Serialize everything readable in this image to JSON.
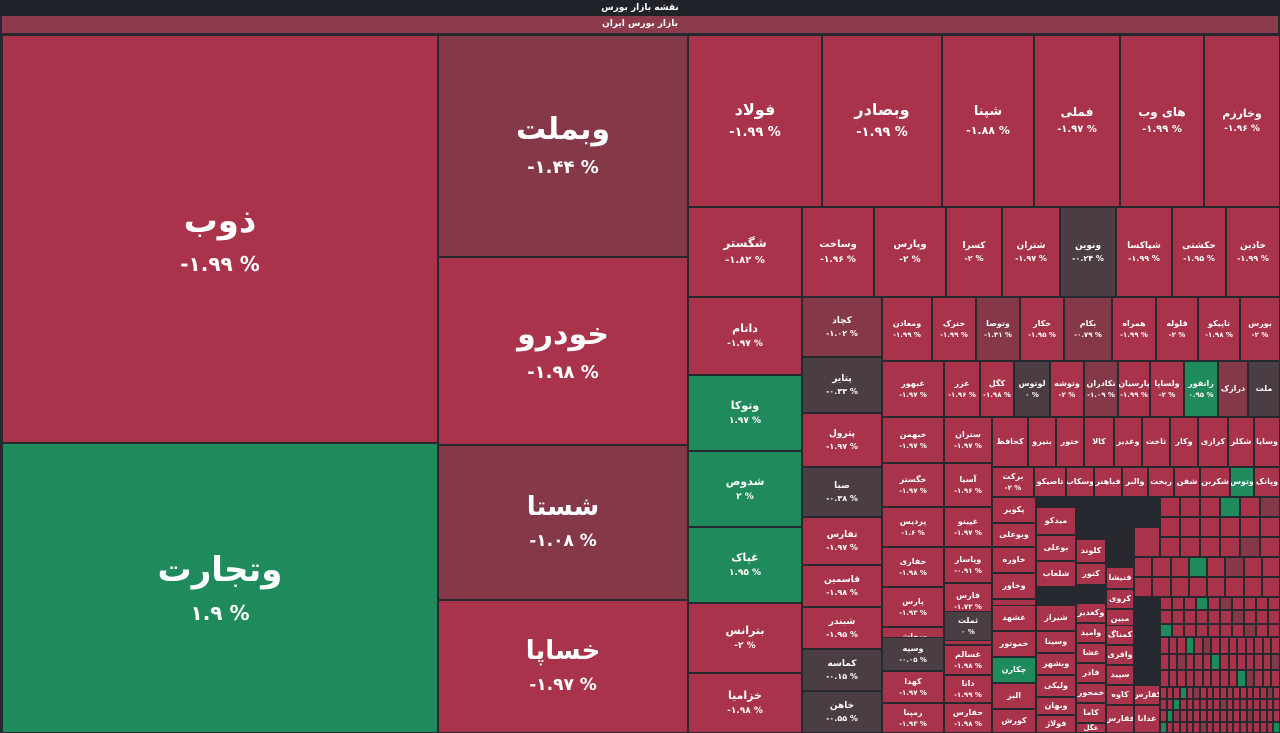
{
  "header": {
    "title": "نقشه بازار بورس",
    "subtitle": "بازار بورس ایران"
  },
  "tiles": [
    {
      "name": "ذوب",
      "change": "-۱.۹۹ %",
      "color": "red"
    },
    {
      "name": "وتجارت",
      "change": "۱.۹ %",
      "color": "green"
    },
    {
      "name": "وبملت",
      "change": "-۱.۴۴ %",
      "color": "mauve"
    },
    {
      "name": "خودرو",
      "change": "-۱.۹۸ %",
      "color": "red"
    },
    {
      "name": "شستا",
      "change": "-۱.۰۸ %",
      "color": "mauve"
    },
    {
      "name": "خساپا",
      "change": "-۱.۹۷ %",
      "color": "red"
    },
    {
      "name": "فولاد",
      "change": "-۱.۹۹ %",
      "color": "red"
    },
    {
      "name": "وبصادر",
      "change": "-۱.۹۹ %",
      "color": "red"
    },
    {
      "name": "شپنا",
      "change": "-۱.۸۸ %",
      "color": "red"
    },
    {
      "name": "فملی",
      "change": "-۱.۹۷ %",
      "color": "red"
    },
    {
      "name": "های وب",
      "change": "-۱.۹۹ %",
      "color": "red"
    },
    {
      "name": "وخارزم",
      "change": "-۱.۹۶ %",
      "color": "red"
    },
    {
      "name": "شگستر",
      "change": "-۱.۸۲ %",
      "color": "red"
    },
    {
      "name": "وساخت",
      "change": "-۱.۹۶ %",
      "color": "red"
    },
    {
      "name": "وپارس",
      "change": "-۲ %",
      "color": "red"
    },
    {
      "name": "کسرا",
      "change": "-۲ %",
      "color": "red"
    },
    {
      "name": "شتران",
      "change": "-۱.۹۷ %",
      "color": "red"
    },
    {
      "name": "ونوین",
      "change": "-۰.۲۴ %",
      "color": "dark"
    },
    {
      "name": "شپاکسا",
      "change": "-۱.۹۹ %",
      "color": "red"
    },
    {
      "name": "حکشتی",
      "change": "-۱.۹۵ %",
      "color": "red"
    },
    {
      "name": "خاذین",
      "change": "-۱.۹۹ %",
      "color": "red"
    },
    {
      "name": "داتام",
      "change": "-۱.۹۷ %",
      "color": "red"
    },
    {
      "name": "کچاد",
      "change": "-۱.۰۲ %",
      "color": "mauve"
    },
    {
      "name": "ومعادن",
      "change": "-۱.۹۹ %",
      "color": "red"
    },
    {
      "name": "خترک",
      "change": "-۱.۹۹ %",
      "color": "red"
    },
    {
      "name": "وتوصا",
      "change": "-۱.۴۱ %",
      "color": "mauve"
    },
    {
      "name": "خکار",
      "change": "-۱.۹۵ %",
      "color": "red"
    },
    {
      "name": "بکام",
      "change": "-۰.۷۹ %",
      "color": "mauve"
    },
    {
      "name": "همراه",
      "change": "-۱.۹۹ %",
      "color": "red"
    },
    {
      "name": "قلوله",
      "change": "-۲ %",
      "color": "red"
    },
    {
      "name": "تاپیکو",
      "change": "-۱.۹۸ %",
      "color": "red"
    },
    {
      "name": "بورس",
      "change": "-۲ %",
      "color": "red"
    },
    {
      "name": "وتوکا",
      "change": "۱.۹۷ %",
      "color": "green"
    },
    {
      "name": "پتایر",
      "change": "-۰.۳۳ %",
      "color": "dark"
    },
    {
      "name": "غبهور",
      "change": "-۱.۹۷ %",
      "color": "red"
    },
    {
      "name": "غزر",
      "change": "-۱.۹۶ %",
      "color": "red"
    },
    {
      "name": "کگل",
      "change": "-۱.۹۸ %",
      "color": "red"
    },
    {
      "name": "لوتوس",
      "change": "۰ %",
      "color": "dark"
    },
    {
      "name": "وتوشه",
      "change": "-۲ %",
      "color": "red"
    },
    {
      "name": "تکادران",
      "change": "-۱.۰۹ %",
      "color": "mauve"
    },
    {
      "name": "پارسیان",
      "change": "-۱.۹۹ %",
      "color": "red"
    },
    {
      "name": "ولساپا",
      "change": "-۲ %",
      "color": "red"
    },
    {
      "name": "رانفور",
      "change": "۰.۹۵ %",
      "color": "green"
    },
    {
      "name": "درازک",
      "change": "",
      "color": "mauve"
    },
    {
      "name": "ملت",
      "change": "",
      "color": "dark"
    },
    {
      "name": "شدوص",
      "change": "۲ %",
      "color": "green"
    },
    {
      "name": "پترول",
      "change": "-۱.۹۷ %",
      "color": "red"
    },
    {
      "name": "خبهمن",
      "change": "-۱.۹۷ %",
      "color": "red"
    },
    {
      "name": "ستران",
      "change": "-۱.۹۷ %",
      "color": "red"
    },
    {
      "name": "کحافظ",
      "change": "",
      "color": "red"
    },
    {
      "name": "بنیرو",
      "change": "",
      "color": "red"
    },
    {
      "name": "ختور",
      "change": "",
      "color": "red"
    },
    {
      "name": "کالا",
      "change": "",
      "color": "red"
    },
    {
      "name": "وغدیر",
      "change": "",
      "color": "red"
    },
    {
      "name": "ثاخت",
      "change": "",
      "color": "red"
    },
    {
      "name": "وکار",
      "change": "",
      "color": "red"
    },
    {
      "name": "کرازی",
      "change": "",
      "color": "red"
    },
    {
      "name": "شکلر",
      "change": "",
      "color": "red"
    },
    {
      "name": "وسایا",
      "change": "",
      "color": "red"
    },
    {
      "name": "غپاک",
      "change": "۱.۹۵ %",
      "color": "green"
    },
    {
      "name": "صبا",
      "change": "-۰.۳۸ %",
      "color": "dark"
    },
    {
      "name": "خگستر",
      "change": "-۱.۹۷ %",
      "color": "red"
    },
    {
      "name": "آسیا",
      "change": "-۱.۹۶ %",
      "color": "red"
    },
    {
      "name": "برکت",
      "change": "-۲ %",
      "color": "red"
    },
    {
      "name": "تاصیکو",
      "change": "",
      "color": "red"
    },
    {
      "name": "وسکاب",
      "change": "",
      "color": "red"
    },
    {
      "name": "فباهنر",
      "change": "",
      "color": "red"
    },
    {
      "name": "والبر",
      "change": "",
      "color": "red"
    },
    {
      "name": "ریخت",
      "change": "",
      "color": "red"
    },
    {
      "name": "شفن",
      "change": "",
      "color": "red"
    },
    {
      "name": "شکربن",
      "change": "",
      "color": "red"
    },
    {
      "name": "وتوس",
      "change": "",
      "color": "green"
    },
    {
      "name": "وپانک",
      "change": "",
      "color": "red"
    },
    {
      "name": "پردیس",
      "change": "-۱.۶ %",
      "color": "red"
    },
    {
      "name": "غپینو",
      "change": "-۱.۹۷ %",
      "color": "red"
    },
    {
      "name": "پکویر",
      "change": "",
      "color": "red"
    },
    {
      "name": "بترانس",
      "change": "-۲ %",
      "color": "red"
    },
    {
      "name": "تفارس",
      "change": "-۱.۹۷ %",
      "color": "red"
    },
    {
      "name": "حفاری",
      "change": "-۱.۹۸ %",
      "color": "red"
    },
    {
      "name": "وپاسار",
      "change": "-۰.۹۱ %",
      "color": "red"
    },
    {
      "name": "وبوعلی",
      "change": "",
      "color": "red"
    },
    {
      "name": "خاوره",
      "change": "",
      "color": "red"
    },
    {
      "name": "میدکو",
      "change": "",
      "color": "red"
    },
    {
      "name": "قاسمین",
      "change": "-۱.۹۸ %",
      "color": "red"
    },
    {
      "name": "پارس",
      "change": "-۱.۹۳ %",
      "color": "red"
    },
    {
      "name": "فارس",
      "change": "-۱.۷۳ %",
      "color": "red"
    },
    {
      "name": "وخاور",
      "change": "",
      "color": "red"
    },
    {
      "name": "بوعلی",
      "change": "",
      "color": "red"
    },
    {
      "name": "کلوند",
      "change": "",
      "color": "red"
    },
    {
      "name": "شبندر",
      "change": "-۱.۹۵ %",
      "color": "red"
    },
    {
      "name": "سخاش",
      "change": "-۱.۹۷ %",
      "color": "red"
    },
    {
      "name": "پردیسح",
      "change": "-۱.۹۵ %",
      "color": "red"
    },
    {
      "name": "تاپیکو",
      "change": "",
      "color": "red"
    },
    {
      "name": "شلعاب",
      "change": "",
      "color": "red"
    },
    {
      "name": "کنور",
      "change": "",
      "color": "red"
    },
    {
      "name": "فنیشا",
      "change": "",
      "color": "red"
    },
    {
      "name": "خزامیا",
      "change": "-۱.۹۸ %",
      "color": "red"
    },
    {
      "name": "کماسه",
      "change": "-۰.۱۵ %",
      "color": "dark"
    },
    {
      "name": "وسپه",
      "change": "-۰.۰۵ %",
      "color": "dark"
    },
    {
      "name": "ثملت",
      "change": "۰ %",
      "color": "dark"
    },
    {
      "name": "غشهد",
      "change": "",
      "color": "red"
    },
    {
      "name": "شیراز",
      "change": "",
      "color": "red"
    },
    {
      "name": "وکغدیر",
      "change": "",
      "color": "red"
    },
    {
      "name": "کروی",
      "change": "",
      "color": "red"
    },
    {
      "name": "خاهن",
      "change": "-۰.۵۵ %",
      "color": "dark"
    },
    {
      "name": "کهدا",
      "change": "-۱.۹۷ %",
      "color": "red"
    },
    {
      "name": "غسالم",
      "change": "-۱.۹۸ %",
      "color": "red"
    },
    {
      "name": "خموتور",
      "change": "",
      "color": "red"
    },
    {
      "name": "وسینا",
      "change": "",
      "color": "red"
    },
    {
      "name": "وامید",
      "change": "",
      "color": "red"
    },
    {
      "name": "مبین",
      "change": "",
      "color": "red"
    },
    {
      "name": "رمپنا",
      "change": "-۱.۹۳ %",
      "color": "red"
    },
    {
      "name": "دانا",
      "change": "-۱.۹۹ %",
      "color": "red"
    },
    {
      "name": "حفارس",
      "change": "-۱.۹۸ %",
      "color": "red"
    },
    {
      "name": "چکارن",
      "change": "",
      "color": "green"
    },
    {
      "name": "وبشهر",
      "change": "",
      "color": "red"
    },
    {
      "name": "غشا",
      "change": "",
      "color": "red"
    },
    {
      "name": "کمناگ",
      "change": "",
      "color": "red"
    },
    {
      "name": "البز",
      "change": "",
      "color": "red"
    },
    {
      "name": "ولیکی",
      "change": "",
      "color": "red"
    },
    {
      "name": "فاذر",
      "change": "",
      "color": "red"
    },
    {
      "name": "وافری",
      "change": "",
      "color": "red"
    },
    {
      "name": "کورش",
      "change": "",
      "color": "red"
    },
    {
      "name": "وبهان",
      "change": "",
      "color": "red"
    },
    {
      "name": "خمحور",
      "change": "",
      "color": "red"
    },
    {
      "name": "سپید",
      "change": "",
      "color": "red"
    },
    {
      "name": "کاوه",
      "change": "",
      "color": "red"
    },
    {
      "name": "فولاژ",
      "change": "",
      "color": "red"
    },
    {
      "name": "کاما",
      "change": "",
      "color": "red"
    },
    {
      "name": "فقارس",
      "change": "",
      "color": "red"
    },
    {
      "name": "غگل",
      "change": "",
      "color": "red"
    },
    {
      "name": "غدانا",
      "change": "",
      "color": "red"
    },
    {
      "name": "کفارس",
      "change": "",
      "color": "red"
    },
    {
      "name": "خودکا",
      "change": "",
      "color": "red"
    }
  ],
  "colors": {
    "red": "#a9334a",
    "mauve": "#843848",
    "green": "#1f8a5c",
    "dark": "#4a3d44"
  }
}
